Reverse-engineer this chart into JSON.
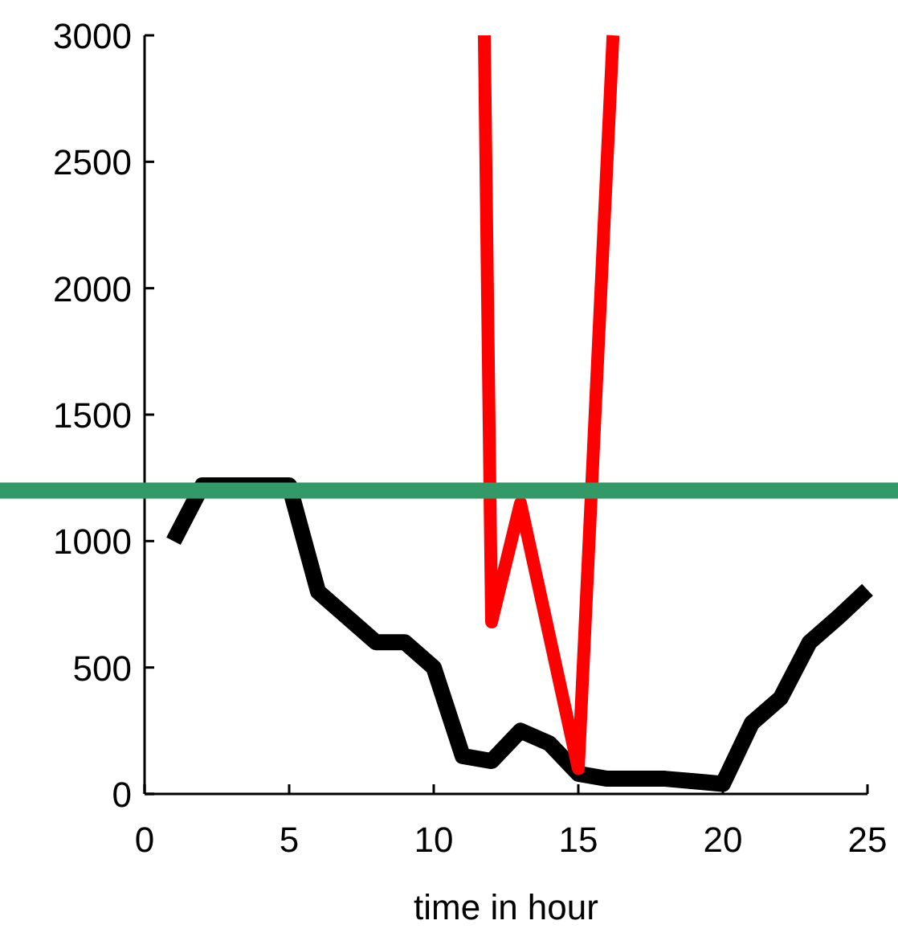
{
  "chart_data": {
    "type": "line",
    "xlabel": "time in hour",
    "xlim": [
      0,
      25
    ],
    "xticks": [
      0,
      5,
      10,
      15,
      20,
      25
    ],
    "ylim": [
      0,
      3000
    ],
    "yticks": [
      0,
      500,
      1000,
      1500,
      2000,
      2500,
      3000
    ],
    "grid": false,
    "marker": "none",
    "line_style": "solid",
    "series": [
      {
        "color": "#000000",
        "x": [
          1,
          2,
          3,
          4,
          5,
          6,
          7,
          8,
          9,
          10,
          11,
          12,
          13,
          14,
          15,
          16,
          17,
          18,
          19,
          20,
          21,
          22,
          23,
          24,
          25
        ],
        "values": [
          1000,
          1220,
          1220,
          1220,
          1220,
          800,
          700,
          600,
          600,
          500,
          150,
          130,
          250,
          200,
          80,
          60,
          60,
          60,
          50,
          40,
          280,
          380,
          600,
          700,
          807
        ]
      },
      {
        "color": "#ff0000",
        "x": [
          11.75,
          12,
          13,
          15,
          16.2
        ],
        "values": [
          3000,
          680,
          1150,
          100,
          3000
        ]
      }
    ],
    "ref_lines": [
      {
        "axis": "y",
        "value": 1200,
        "color": "#339966"
      }
    ]
  }
}
